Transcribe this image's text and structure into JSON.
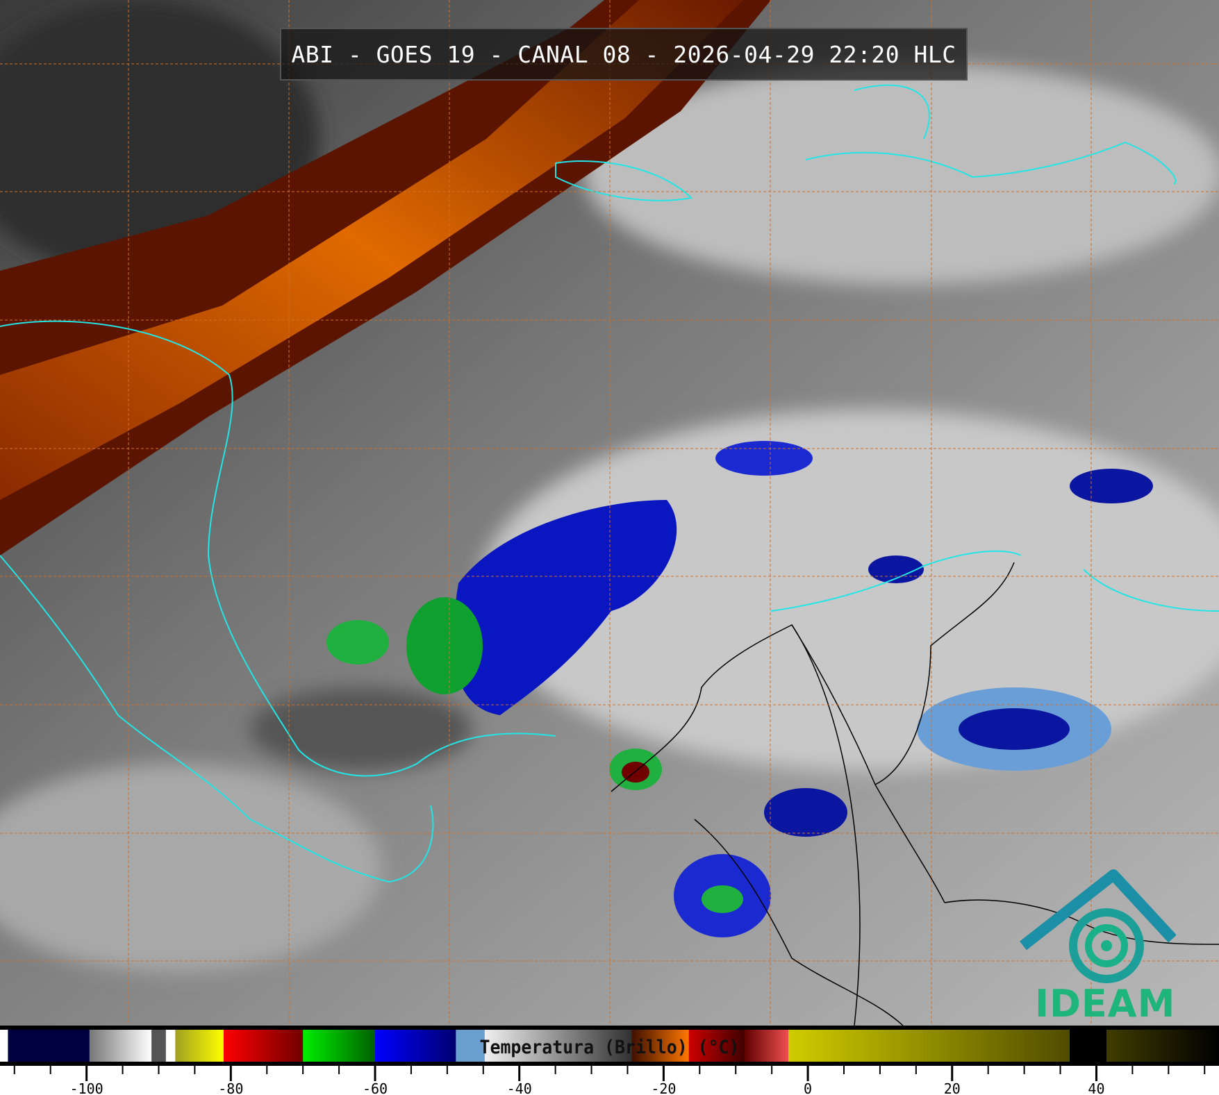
{
  "title": "ABI - GOES 19 - CANAL 08 - 2026-04-29 22:20 HLC",
  "logo": {
    "text": "IDEAM",
    "color": "#1db57a",
    "symbol_color": "#1b8fa6"
  },
  "colors": {
    "grid": "#d0702a",
    "coastline": "#22e5e5",
    "borders": "#000000"
  },
  "colorbar": {
    "label": "Temperatura (Brillo) (°C)",
    "range": [
      -112,
      57
    ],
    "major_ticks": [
      -100,
      -80,
      -60,
      -40,
      -20,
      0,
      20,
      40
    ],
    "tick_labels": [
      "-100",
      "-80",
      "-60",
      "-40",
      "-20",
      "0",
      "20",
      "40"
    ],
    "minor_step": 5,
    "segments": [
      {
        "from": -112,
        "to": -110.9,
        "colors": [
          "#ffffff",
          "#ffffff"
        ]
      },
      {
        "from": -110.9,
        "to": -99.6,
        "colors": [
          "#000040",
          "#000040"
        ]
      },
      {
        "from": -99.6,
        "to": -91,
        "colors": [
          "#777777",
          "#ffffff"
        ]
      },
      {
        "from": -91,
        "to": -89,
        "colors": [
          "#555555",
          "#555555"
        ]
      },
      {
        "from": -89,
        "to": -87.7,
        "colors": [
          "#ffffff",
          "#ffffff"
        ]
      },
      {
        "from": -87.7,
        "to": -81,
        "colors": [
          "#a0a020",
          "#ffff00"
        ]
      },
      {
        "from": -81,
        "to": -70,
        "colors": [
          "#ff0000",
          "#700000"
        ]
      },
      {
        "from": -70,
        "to": -60,
        "colors": [
          "#00ee00",
          "#006000"
        ]
      },
      {
        "from": -60,
        "to": -48.8,
        "colors": [
          "#0000ff",
          "#000070"
        ]
      },
      {
        "from": -48.8,
        "to": -44.8,
        "colors": [
          "#6aa0d0",
          "#6aa0d0"
        ]
      },
      {
        "from": -44.8,
        "to": -24.4,
        "colors": [
          "#f0f0f0",
          "#303030"
        ]
      },
      {
        "from": -24.4,
        "to": -16.5,
        "colors": [
          "#401000",
          "#ff7800"
        ]
      },
      {
        "from": -16.5,
        "to": -8.8,
        "colors": [
          "#cc0000",
          "#400000"
        ]
      },
      {
        "from": -8.8,
        "to": -2.7,
        "colors": [
          "#600000",
          "#f05050"
        ]
      },
      {
        "from": -2.7,
        "to": 36.3,
        "colors": [
          "#d0cc00",
          "#504c00"
        ]
      },
      {
        "from": 36.3,
        "to": 41.4,
        "colors": [
          "#000000",
          "#000000"
        ]
      },
      {
        "from": 41.4,
        "to": 57,
        "colors": [
          "#403c00",
          "#000000"
        ]
      }
    ]
  }
}
